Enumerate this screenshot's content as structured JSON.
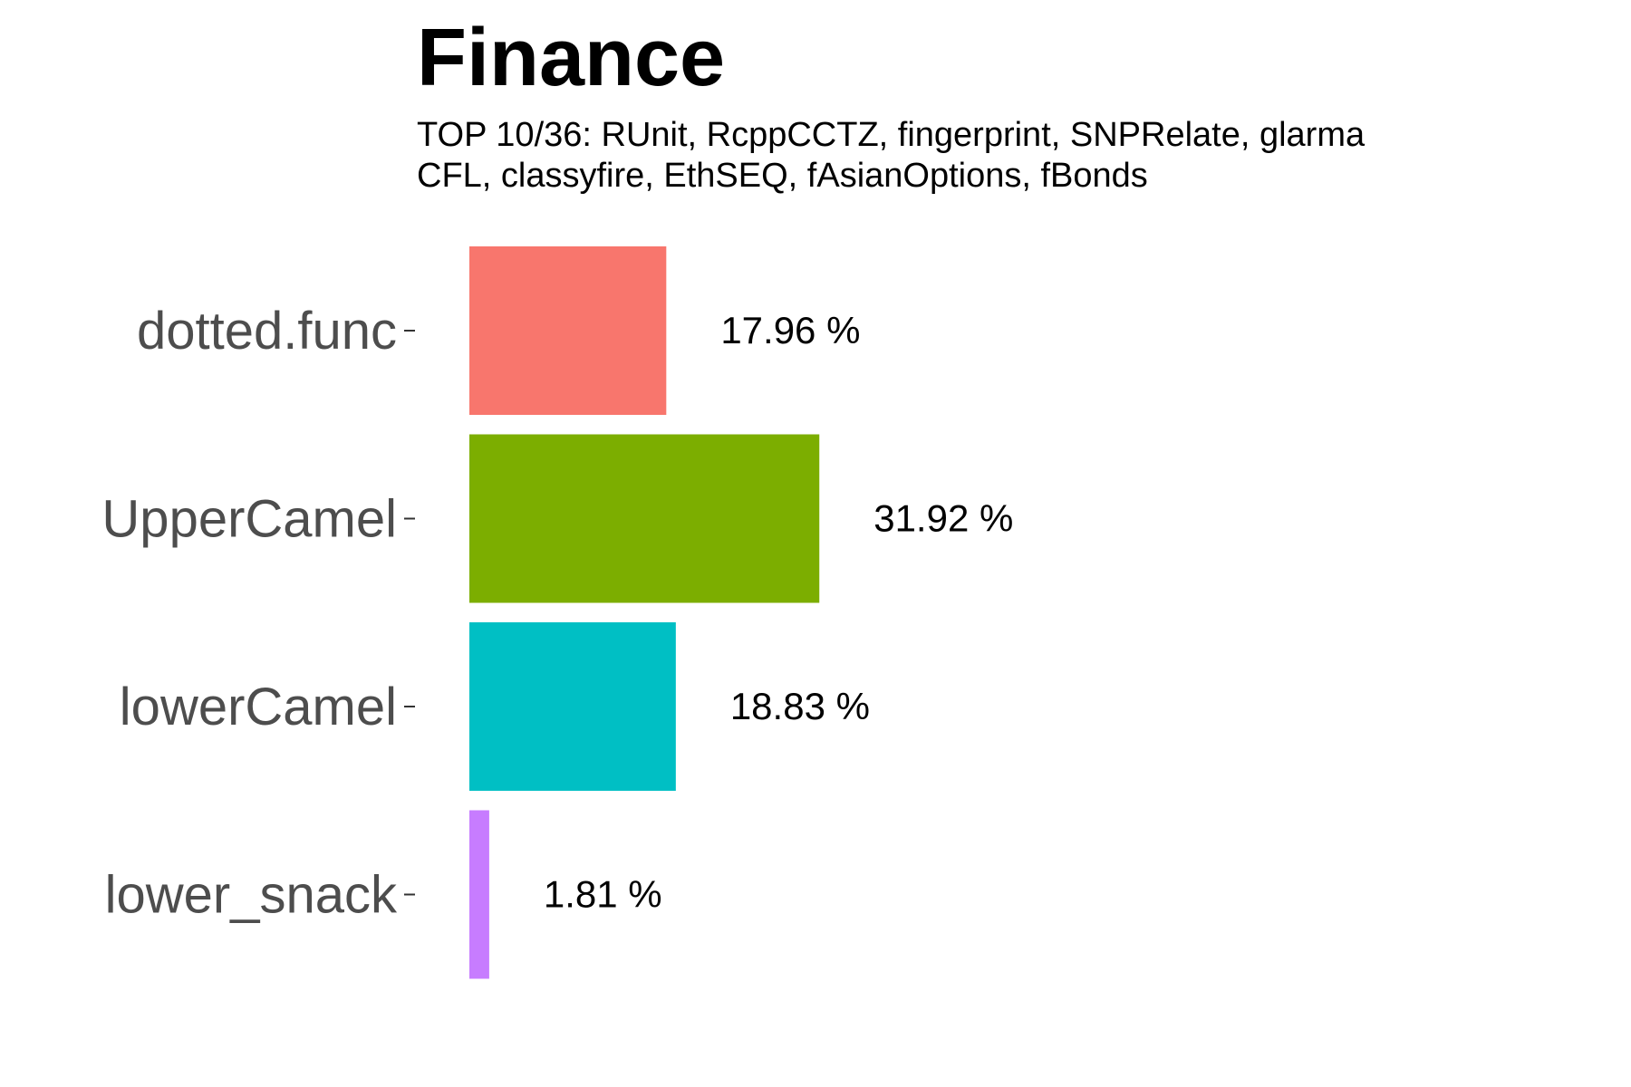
{
  "chart_data": {
    "type": "bar",
    "orientation": "horizontal",
    "title": "Finance",
    "subtitle_lines": [
      "TOP 10/36: RUnit, RcppCCTZ, fingerprint, SNPRelate, glarma",
      "CFL, classyfire, EthSEQ, fAsianOptions, fBonds"
    ],
    "categories": [
      "lower_snack",
      "lowerCamel",
      "UpperCamel",
      "dotted.func"
    ],
    "values": [
      1.81,
      18.83,
      31.92,
      17.96
    ],
    "value_labels": [
      "1.81 %",
      "18.83 %",
      "31.92 %",
      "17.96 %"
    ],
    "colors": [
      "#C77CFF",
      "#00BFC4",
      "#7CAE00",
      "#F8766D"
    ],
    "xlabel": "",
    "ylabel": "",
    "xlim": [
      0,
      100
    ],
    "grid": false,
    "legend": "none"
  }
}
